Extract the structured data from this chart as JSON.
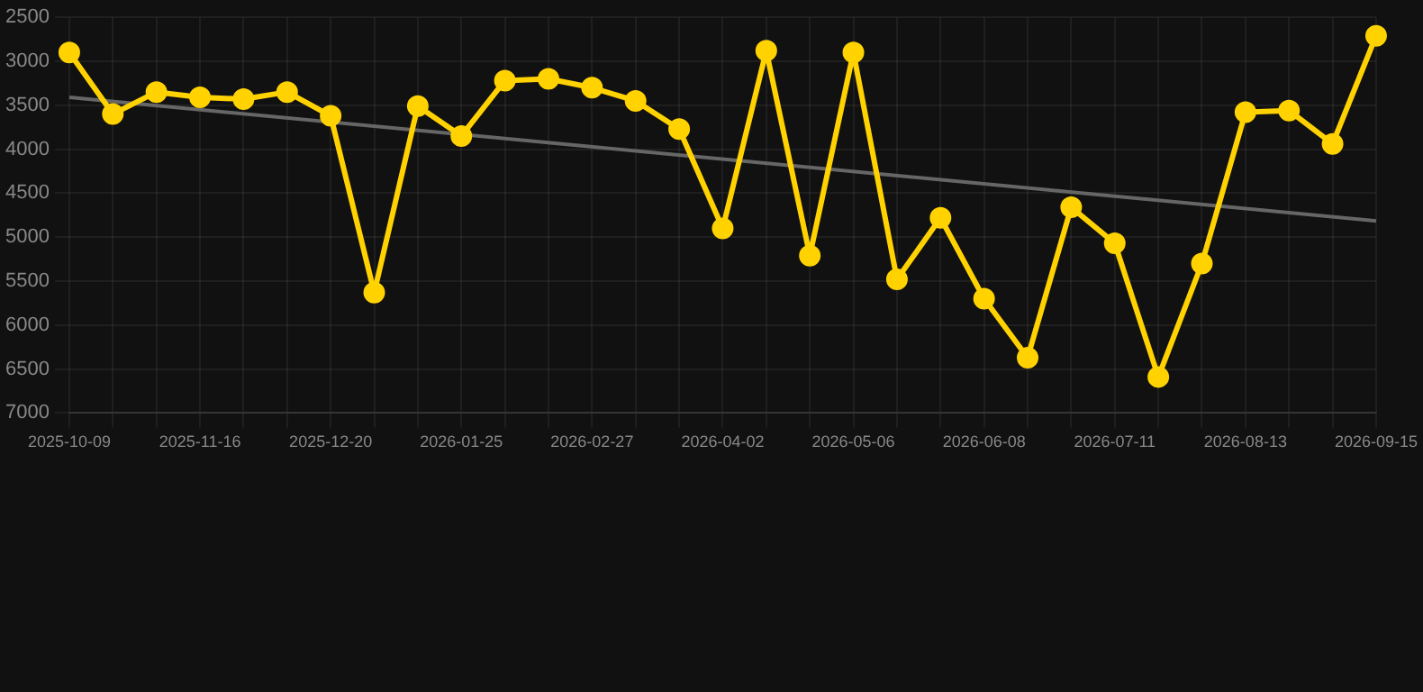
{
  "chart_data": {
    "type": "line",
    "categories": [
      "2025-10-09",
      null,
      null,
      "2025-11-16",
      null,
      null,
      "2025-12-20",
      null,
      null,
      "2026-01-25",
      null,
      null,
      "2026-02-27",
      null,
      null,
      "2026-04-02",
      null,
      null,
      "2026-05-06",
      null,
      null,
      "2026-06-08",
      null,
      null,
      "2026-07-11",
      null,
      null,
      "2026-08-13",
      null,
      null,
      "2026-09-15"
    ],
    "series": [
      {
        "color": "#ffd200",
        "values": [
          2900,
          3600,
          3350,
          3410,
          3430,
          3350,
          3620,
          5630,
          3510,
          3850,
          3220,
          3200,
          3300,
          3450,
          3770,
          4900,
          2880,
          5210,
          2900,
          5480,
          4780,
          5700,
          6370,
          4660,
          5070,
          6590,
          5300,
          3580,
          3560,
          3940,
          2710
        ]
      },
      {
        "type": "line",
        "color": "#666666",
        "marker": "none",
        "values": [
          3410,
          null,
          null,
          null,
          null,
          null,
          null,
          null,
          null,
          null,
          null,
          null,
          null,
          null,
          null,
          null,
          null,
          null,
          null,
          null,
          null,
          null,
          null,
          null,
          null,
          null,
          null,
          null,
          null,
          null,
          4815
        ]
      }
    ],
    "ylim": [
      7000,
      2500
    ],
    "yticks": [
      2500,
      3000,
      3500,
      4000,
      4500,
      5000,
      5500,
      6000,
      6500,
      7000
    ],
    "grid": true,
    "marker": "circle"
  }
}
